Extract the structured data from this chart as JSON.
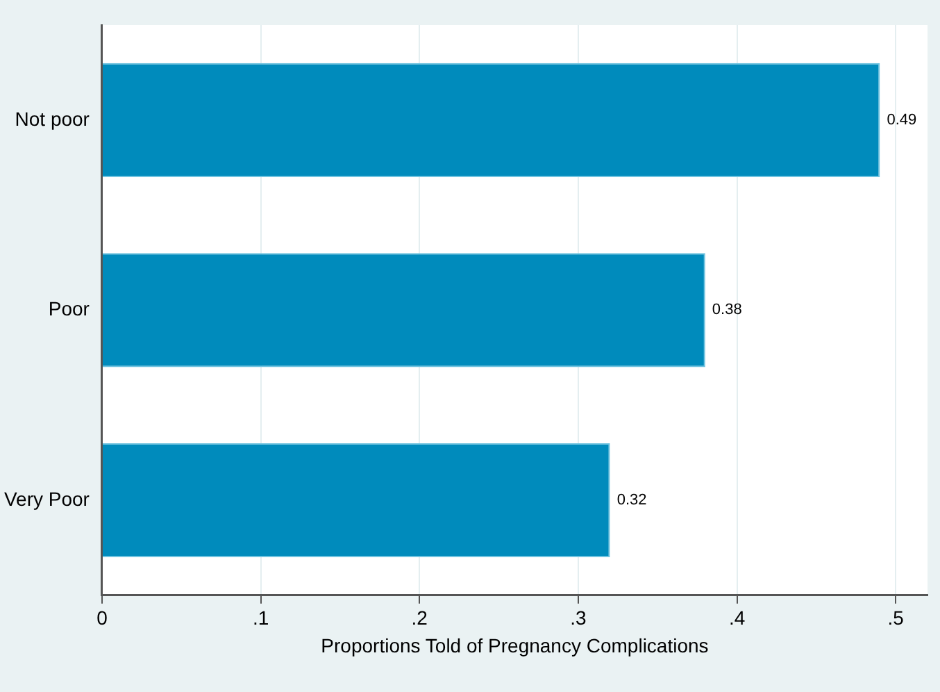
{
  "chart_data": {
    "type": "bar",
    "orientation": "horizontal",
    "xlabel": "Proportions Told of Pregnancy Complications",
    "categories": [
      "Not poor",
      "Poor",
      "Very Poor"
    ],
    "values": [
      0.49,
      0.38,
      0.32
    ],
    "color": "#008bbc",
    "xlim": [
      0,
      0.52
    ],
    "xticks": [
      {
        "value": 0,
        "label": "0"
      },
      {
        "value": 0.1,
        "label": ".1"
      },
      {
        "value": 0.2,
        "label": ".2"
      },
      {
        "value": 0.3,
        "label": ".3"
      },
      {
        "value": 0.4,
        "label": ".4"
      },
      {
        "value": 0.5,
        "label": ".5"
      }
    ],
    "grid": "x",
    "data_labels": true,
    "legend": false
  }
}
